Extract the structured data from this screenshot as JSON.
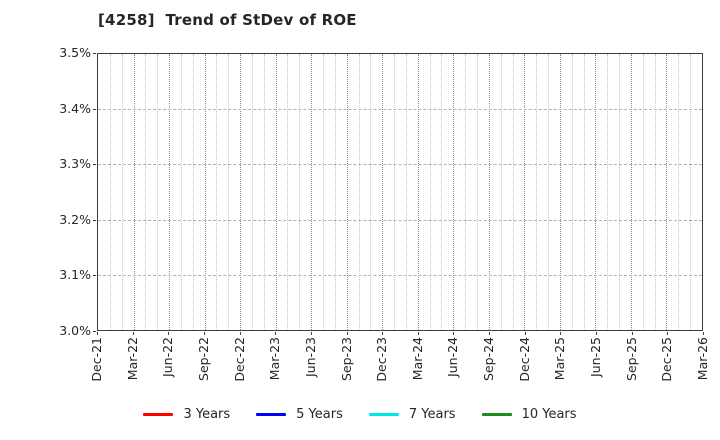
{
  "title": "[4258]  Trend of StDev of ROE",
  "chart_data": {
    "type": "line",
    "title": "[4258]  Trend of StDev of ROE",
    "x_tick_labels": [
      "Dec-21",
      "Mar-22",
      "Jun-22",
      "Sep-22",
      "Dec-22",
      "Mar-23",
      "Jun-23",
      "Sep-23",
      "Dec-23",
      "Mar-24",
      "Jun-24",
      "Sep-24",
      "Dec-24",
      "Mar-25",
      "Jun-25",
      "Sep-25",
      "Dec-25",
      "Mar-26"
    ],
    "x_minor_ticks_per_major": 3,
    "y_ticks": [
      3.0,
      3.1,
      3.2,
      3.3,
      3.4,
      3.5
    ],
    "y_tick_labels": [
      "3.0%",
      "3.1%",
      "3.2%",
      "3.3%",
      "3.4%",
      "3.5%"
    ],
    "ylim": [
      3.0,
      3.5
    ],
    "grid": true,
    "legend_position": "bottom",
    "series": [
      {
        "name": "3 Years",
        "color": "#ff0000",
        "values": []
      },
      {
        "name": "5 Years",
        "color": "#0000ff",
        "values": []
      },
      {
        "name": "7 Years",
        "color": "#00e5e5",
        "values": []
      },
      {
        "name": "10 Years",
        "color": "#1e8b1e",
        "values": []
      }
    ]
  }
}
